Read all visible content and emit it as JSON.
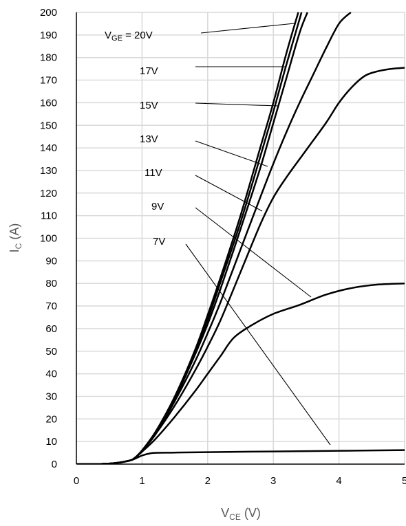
{
  "chart_data": {
    "type": "line",
    "xlabel": {
      "main": "V",
      "sub": "CE",
      "tail": " (V)"
    },
    "ylabel": {
      "main": "I",
      "sub": "C",
      "tail": " (A)"
    },
    "xlim": [
      0,
      5
    ],
    "ylim": [
      0,
      200
    ],
    "x_ticks": [
      0,
      1,
      2,
      3,
      4,
      5
    ],
    "y_ticks": [
      0,
      10,
      20,
      30,
      40,
      50,
      60,
      70,
      80,
      90,
      100,
      110,
      120,
      130,
      140,
      150,
      160,
      170,
      180,
      190,
      200
    ],
    "grid": true,
    "series": [
      {
        "name": "V_GE = 20V",
        "label": {
          "main": "V",
          "sub": "GE",
          "tail": " = 20V"
        },
        "x": [
          0,
          0.5,
          0.8,
          0.9,
          1.0,
          1.2,
          1.5,
          1.8,
          2.0,
          2.2,
          2.5,
          2.8,
          3.0,
          3.2,
          3.38
        ],
        "y": [
          0,
          0.2,
          1.5,
          3,
          6,
          14,
          30,
          50,
          66,
          83,
          110,
          140,
          160,
          182,
          200
        ]
      },
      {
        "name": "17V",
        "label": {
          "main": "17V"
        },
        "x": [
          0,
          0.5,
          0.8,
          0.9,
          1.0,
          1.2,
          1.5,
          1.8,
          2.0,
          2.2,
          2.5,
          2.8,
          3.0,
          3.2,
          3.43
        ],
        "y": [
          0,
          0.2,
          1.5,
          3,
          6,
          14,
          29,
          49,
          64,
          81,
          107,
          136,
          156,
          177,
          200
        ]
      },
      {
        "name": "15V",
        "label": {
          "main": "15V"
        },
        "x": [
          0,
          0.5,
          0.8,
          0.9,
          1.0,
          1.2,
          1.5,
          1.8,
          2.0,
          2.2,
          2.5,
          2.8,
          3.0,
          3.2,
          3.4,
          3.52
        ],
        "y": [
          0,
          0.2,
          1.5,
          3,
          6,
          14,
          29,
          48,
          62,
          78,
          104,
          131,
          151,
          171,
          191,
          200
        ]
      },
      {
        "name": "13V",
        "label": {
          "main": "13V"
        },
        "x": [
          0,
          0.5,
          0.8,
          0.9,
          1.0,
          1.2,
          1.5,
          1.8,
          2.0,
          2.2,
          2.5,
          2.8,
          3.0,
          3.2,
          3.4,
          3.6,
          3.8,
          4.0,
          4.18
        ],
        "y": [
          0,
          0.2,
          1.5,
          3,
          6,
          13,
          28,
          45,
          58,
          72,
          95,
          118,
          133,
          147,
          160,
          172,
          184,
          195,
          200
        ]
      },
      {
        "name": "11V",
        "label": {
          "main": "11V"
        },
        "x": [
          0,
          0.5,
          0.8,
          0.9,
          1.0,
          1.2,
          1.5,
          1.8,
          2.0,
          2.2,
          2.5,
          2.8,
          3.0,
          3.2,
          3.5,
          3.8,
          4.0,
          4.2,
          4.4,
          4.6,
          4.8,
          5.0
        ],
        "y": [
          0,
          0.2,
          1.5,
          3,
          6,
          13,
          26,
          41,
          52,
          64,
          85,
          106,
          118,
          127,
          139,
          151,
          160,
          167,
          172,
          174,
          175,
          175.5
        ]
      },
      {
        "name": "9V",
        "label": {
          "main": "9V"
        },
        "x": [
          0,
          0.5,
          0.8,
          0.9,
          1.0,
          1.2,
          1.5,
          1.8,
          2.0,
          2.2,
          2.4,
          2.7,
          3.0,
          3.4,
          3.8,
          4.2,
          4.6,
          5.0
        ],
        "y": [
          0,
          0.2,
          1.5,
          3,
          5.5,
          11,
          21,
          32,
          40,
          48,
          56,
          62,
          66.5,
          70.5,
          75,
          78,
          79.5,
          80
        ]
      },
      {
        "name": "7V",
        "label": {
          "main": "7V"
        },
        "x": [
          0,
          0.5,
          0.8,
          0.9,
          1.0,
          1.1,
          1.2,
          1.5,
          2.0,
          3.0,
          4.0,
          5.0
        ],
        "y": [
          0,
          0.2,
          1.5,
          2.5,
          3.8,
          4.6,
          5.0,
          5.1,
          5.3,
          5.6,
          5.9,
          6.2
        ]
      }
    ]
  }
}
